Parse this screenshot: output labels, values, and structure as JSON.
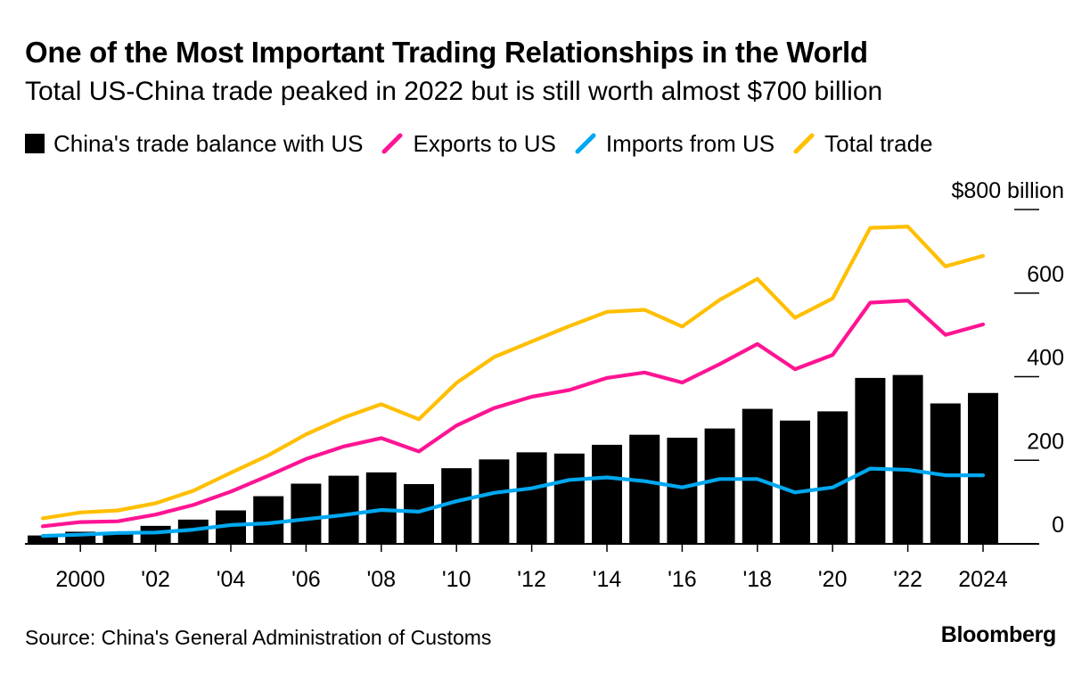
{
  "title": "One of the Most Important Trading Relationships in the World",
  "subtitle": "Total US-China trade peaked in 2022 but is still worth almost $700 billion",
  "source": "Source: China's General Administration of Customs",
  "brand": "Bloomberg",
  "colors": {
    "balance": "#000000",
    "exports": "#ff1493",
    "imports": "#00a8f0",
    "total": "#ffbf00"
  },
  "legend": [
    {
      "label": "China's trade balance with US",
      "key": "balance",
      "shape": "square"
    },
    {
      "label": "Exports to US",
      "key": "exports",
      "shape": "line"
    },
    {
      "label": "Imports from US",
      "key": "imports",
      "shape": "line"
    },
    {
      "label": "Total trade",
      "key": "total",
      "shape": "line"
    }
  ],
  "chart_data": {
    "type": "bar+line",
    "unit": "billion USD",
    "x": [
      1999,
      2000,
      2001,
      2002,
      2003,
      2004,
      2005,
      2006,
      2007,
      2008,
      2009,
      2010,
      2011,
      2012,
      2013,
      2014,
      2015,
      2016,
      2017,
      2018,
      2019,
      2020,
      2021,
      2022,
      2023,
      2024
    ],
    "x_tick_values": [
      2000,
      2002,
      2004,
      2006,
      2008,
      2010,
      2012,
      2014,
      2016,
      2018,
      2020,
      2022,
      2024
    ],
    "x_tick_labels": [
      "2000",
      "'02",
      "'04",
      "'06",
      "'08",
      "'10",
      "'12",
      "'14",
      "'16",
      "'18",
      "'20",
      "'22",
      "2024"
    ],
    "y_ticks": [
      0,
      200,
      400,
      600,
      800
    ],
    "y_tick_labels": [
      "0",
      "200",
      "400",
      "600",
      "$800 billion"
    ],
    "ylim": [
      0,
      800
    ],
    "grid": "horizontal",
    "axis_side": "right",
    "series": [
      {
        "name": "China's trade balance with US",
        "key": "balance",
        "type": "bar",
        "values": [
          20,
          29,
          28,
          43,
          58,
          80,
          114,
          144,
          163,
          171,
          143,
          181,
          202,
          219,
          216,
          237,
          261,
          254,
          276,
          323,
          295,
          317,
          397,
          404,
          336,
          361
        ]
      },
      {
        "name": "Exports to US",
        "key": "exports",
        "type": "line",
        "values": [
          42,
          52,
          54,
          70,
          93,
          125,
          163,
          203,
          233,
          253,
          221,
          283,
          325,
          352,
          368,
          397,
          410,
          386,
          430,
          478,
          418,
          452,
          577,
          582,
          500,
          525
        ]
      },
      {
        "name": "Imports from US",
        "key": "imports",
        "type": "line",
        "values": [
          19,
          22,
          26,
          27,
          34,
          45,
          49,
          59,
          69,
          81,
          77,
          102,
          122,
          133,
          153,
          159,
          150,
          135,
          155,
          155,
          123,
          135,
          180,
          177,
          164,
          164
        ]
      },
      {
        "name": "Total trade",
        "key": "total",
        "type": "line",
        "values": [
          61,
          75,
          80,
          97,
          127,
          170,
          212,
          262,
          302,
          334,
          298,
          385,
          447,
          484,
          521,
          555,
          560,
          520,
          584,
          634,
          541,
          587,
          756,
          759,
          664,
          689
        ]
      }
    ]
  }
}
